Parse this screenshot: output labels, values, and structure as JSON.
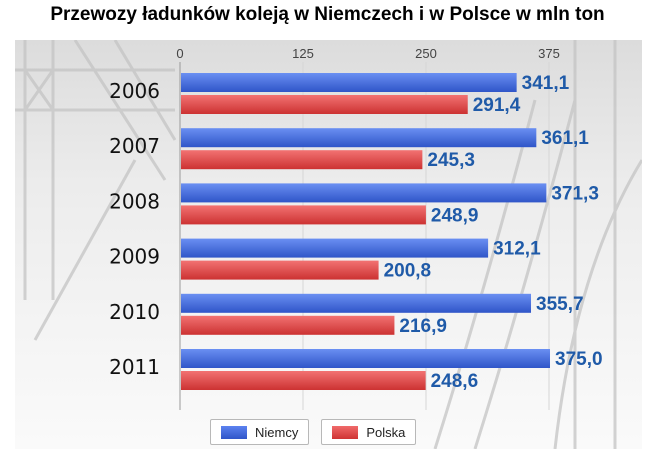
{
  "title": "Przewozy ładunków koleją w Niemczech i w Polsce w mln ton",
  "colors": {
    "niemcy": "#3a63d9",
    "polska": "#e24545",
    "value_text": "#1f5aa8"
  },
  "chart_data": {
    "type": "bar",
    "orientation": "horizontal",
    "title": "Przewozy ładunków koleją w Niemczech i w Polsce w mln ton",
    "categories": [
      "2006",
      "2007",
      "2008",
      "2009",
      "2010",
      "2011"
    ],
    "series": [
      {
        "name": "Niemcy",
        "values": [
          341.1,
          361.1,
          371.3,
          312.1,
          355.7,
          375.0
        ],
        "labels": [
          "341,1",
          "361,1",
          "371,3",
          "312,1",
          "355,7",
          "375,0"
        ]
      },
      {
        "name": "Polska",
        "values": [
          291.4,
          245.3,
          248.9,
          200.8,
          216.9,
          248.6
        ],
        "labels": [
          "291,4",
          "245,3",
          "248,9",
          "200,8",
          "216,9",
          "248,6"
        ]
      }
    ],
    "x_ticks": [
      "0",
      "125",
      "250",
      "375"
    ],
    "xlim": [
      0,
      375
    ],
    "xlabel": "",
    "ylabel": "",
    "legend_position": "bottom"
  },
  "legend": [
    {
      "label": "Niemcy",
      "color": "#3a63d9"
    },
    {
      "label": "Polska",
      "color": "#e24545"
    }
  ]
}
